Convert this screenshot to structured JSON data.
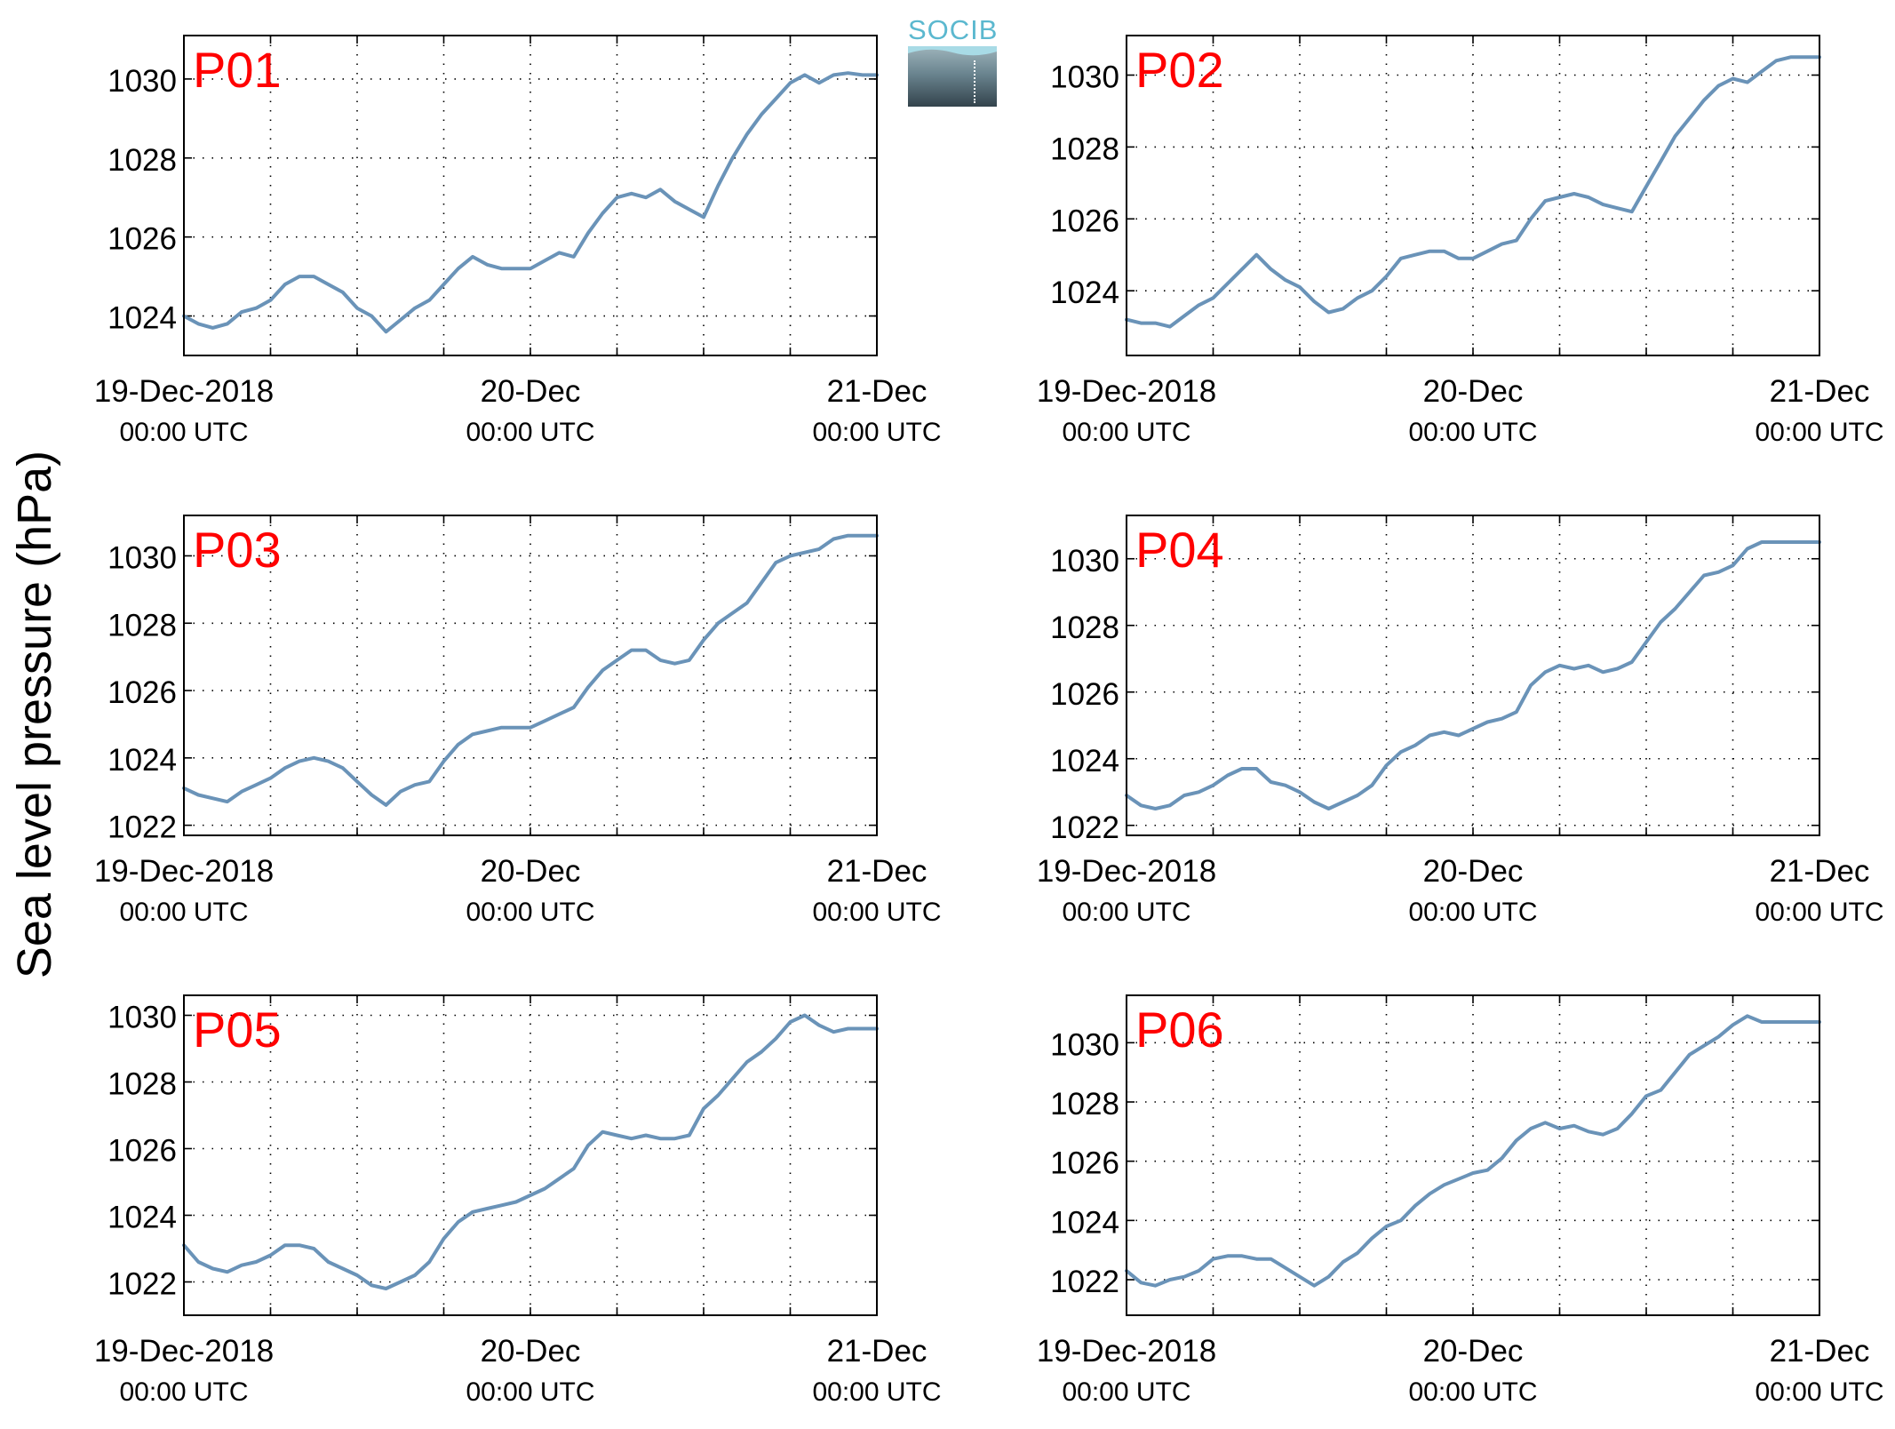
{
  "figure": {
    "ylabel": "Sea level pressure (hPa)",
    "logo_text": "SOCIB",
    "colors": {
      "line": "#6a93b8",
      "panel_label": "#ff0000",
      "axis": "#000000",
      "grid": "#000000"
    }
  },
  "chart_data": [
    {
      "type": "line",
      "title": "P01",
      "x_tick_labels": [
        [
          "19-Dec-2018",
          "00:00 UTC"
        ],
        [
          "20-Dec",
          "00:00 UTC"
        ],
        [
          "21-Dec",
          "00:00 UTC"
        ]
      ],
      "y_ticks": [
        1024,
        1026,
        1028,
        1030
      ],
      "ylim": [
        1023,
        1031.1
      ],
      "xlim": [
        0,
        48
      ],
      "grid": true,
      "series": [
        {
          "x": [
            0,
            1,
            2,
            3,
            4,
            5,
            6,
            7,
            8,
            9,
            10,
            11,
            12,
            13,
            14,
            15,
            16,
            17,
            18,
            19,
            20,
            21,
            22,
            23,
            24,
            25,
            26,
            27,
            28,
            29,
            30,
            31,
            32,
            33,
            34,
            35,
            36,
            37,
            38,
            39,
            40,
            41,
            42,
            43,
            44,
            45,
            46,
            47,
            48
          ],
          "y": [
            1024.0,
            1023.8,
            1023.7,
            1023.8,
            1024.1,
            1024.2,
            1024.4,
            1024.8,
            1025.0,
            1025.0,
            1024.8,
            1024.6,
            1024.2,
            1024.0,
            1023.6,
            1023.9,
            1024.2,
            1024.4,
            1024.8,
            1025.2,
            1025.5,
            1025.3,
            1025.2,
            1025.2,
            1025.2,
            1025.4,
            1025.6,
            1025.5,
            1026.1,
            1026.6,
            1027.0,
            1027.1,
            1027.0,
            1027.2,
            1026.9,
            1026.7,
            1026.5,
            1027.3,
            1028.0,
            1028.6,
            1029.1,
            1029.5,
            1029.9,
            1030.1,
            1029.9,
            1030.1,
            1030.15,
            1030.1,
            1030.1
          ]
        }
      ]
    },
    {
      "type": "line",
      "title": "P02",
      "x_tick_labels": [
        [
          "19-Dec-2018",
          "00:00 UTC"
        ],
        [
          "20-Dec",
          "00:00 UTC"
        ],
        [
          "21-Dec",
          "00:00 UTC"
        ]
      ],
      "y_ticks": [
        1024,
        1026,
        1028,
        1030
      ],
      "ylim": [
        1022.2,
        1031.1
      ],
      "xlim": [
        0,
        48
      ],
      "grid": true,
      "series": [
        {
          "x": [
            0,
            1,
            2,
            3,
            4,
            5,
            6,
            7,
            8,
            9,
            10,
            11,
            12,
            13,
            14,
            15,
            16,
            17,
            18,
            19,
            20,
            21,
            22,
            23,
            24,
            25,
            26,
            27,
            28,
            29,
            30,
            31,
            32,
            33,
            34,
            35,
            36,
            37,
            38,
            39,
            40,
            41,
            42,
            43,
            44,
            45,
            46,
            47,
            48
          ],
          "y": [
            1023.2,
            1023.1,
            1023.1,
            1023.0,
            1023.3,
            1023.6,
            1023.8,
            1024.2,
            1024.6,
            1025.0,
            1024.6,
            1024.3,
            1024.1,
            1023.7,
            1023.4,
            1023.5,
            1023.8,
            1024.0,
            1024.4,
            1024.9,
            1025.0,
            1025.1,
            1025.1,
            1024.9,
            1024.9,
            1025.1,
            1025.3,
            1025.4,
            1026.0,
            1026.5,
            1026.6,
            1026.7,
            1026.6,
            1026.4,
            1026.3,
            1026.2,
            1026.9,
            1027.6,
            1028.3,
            1028.8,
            1029.3,
            1029.7,
            1029.9,
            1029.8,
            1030.1,
            1030.4,
            1030.5,
            1030.5,
            1030.5
          ]
        }
      ]
    },
    {
      "type": "line",
      "title": "P03",
      "x_tick_labels": [
        [
          "19-Dec-2018",
          "00:00 UTC"
        ],
        [
          "20-Dec",
          "00:00 UTC"
        ],
        [
          "21-Dec",
          "00:00 UTC"
        ]
      ],
      "y_ticks": [
        1022,
        1024,
        1026,
        1028,
        1030
      ],
      "ylim": [
        1021.7,
        1031.2
      ],
      "xlim": [
        0,
        48
      ],
      "grid": true,
      "series": [
        {
          "x": [
            0,
            1,
            2,
            3,
            4,
            5,
            6,
            7,
            8,
            9,
            10,
            11,
            12,
            13,
            14,
            15,
            16,
            17,
            18,
            19,
            20,
            21,
            22,
            23,
            24,
            25,
            26,
            27,
            28,
            29,
            30,
            31,
            32,
            33,
            34,
            35,
            36,
            37,
            38,
            39,
            40,
            41,
            42,
            43,
            44,
            45,
            46,
            47,
            48
          ],
          "y": [
            1023.1,
            1022.9,
            1022.8,
            1022.7,
            1023.0,
            1023.2,
            1023.4,
            1023.7,
            1023.9,
            1024.0,
            1023.9,
            1023.7,
            1023.3,
            1022.9,
            1022.6,
            1023.0,
            1023.2,
            1023.3,
            1023.9,
            1024.4,
            1024.7,
            1024.8,
            1024.9,
            1024.9,
            1024.9,
            1025.1,
            1025.3,
            1025.5,
            1026.1,
            1026.6,
            1026.9,
            1027.2,
            1027.2,
            1026.9,
            1026.8,
            1026.9,
            1027.5,
            1028.0,
            1028.3,
            1028.6,
            1029.2,
            1029.8,
            1030.0,
            1030.1,
            1030.2,
            1030.5,
            1030.6,
            1030.6,
            1030.6
          ]
        }
      ]
    },
    {
      "type": "line",
      "title": "P04",
      "x_tick_labels": [
        [
          "19-Dec-2018",
          "00:00 UTC"
        ],
        [
          "20-Dec",
          "00:00 UTC"
        ],
        [
          "21-Dec",
          "00:00 UTC"
        ]
      ],
      "y_ticks": [
        1022,
        1024,
        1026,
        1028,
        1030
      ],
      "ylim": [
        1021.7,
        1031.3
      ],
      "xlim": [
        0,
        48
      ],
      "grid": true,
      "series": [
        {
          "x": [
            0,
            1,
            2,
            3,
            4,
            5,
            6,
            7,
            8,
            9,
            10,
            11,
            12,
            13,
            14,
            15,
            16,
            17,
            18,
            19,
            20,
            21,
            22,
            23,
            24,
            25,
            26,
            27,
            28,
            29,
            30,
            31,
            32,
            33,
            34,
            35,
            36,
            37,
            38,
            39,
            40,
            41,
            42,
            43,
            44,
            45,
            46,
            47,
            48
          ],
          "y": [
            1022.9,
            1022.6,
            1022.5,
            1022.6,
            1022.9,
            1023.0,
            1023.2,
            1023.5,
            1023.7,
            1023.7,
            1023.3,
            1023.2,
            1023.0,
            1022.7,
            1022.5,
            1022.7,
            1022.9,
            1023.2,
            1023.8,
            1024.2,
            1024.4,
            1024.7,
            1024.8,
            1024.7,
            1024.9,
            1025.1,
            1025.2,
            1025.4,
            1026.2,
            1026.6,
            1026.8,
            1026.7,
            1026.8,
            1026.6,
            1026.7,
            1026.9,
            1027.5,
            1028.1,
            1028.5,
            1029.0,
            1029.5,
            1029.6,
            1029.8,
            1030.3,
            1030.5,
            1030.5,
            1030.5,
            1030.5,
            1030.5
          ]
        }
      ]
    },
    {
      "type": "line",
      "title": "P05",
      "x_tick_labels": [
        [
          "19-Dec-2018",
          "00:00 UTC"
        ],
        [
          "20-Dec",
          "00:00 UTC"
        ],
        [
          "21-Dec",
          "00:00 UTC"
        ]
      ],
      "y_ticks": [
        1022,
        1024,
        1026,
        1028,
        1030
      ],
      "ylim": [
        1021.0,
        1030.6
      ],
      "xlim": [
        0,
        48
      ],
      "grid": true,
      "series": [
        {
          "x": [
            0,
            1,
            2,
            3,
            4,
            5,
            6,
            7,
            8,
            9,
            10,
            11,
            12,
            13,
            14,
            15,
            16,
            17,
            18,
            19,
            20,
            21,
            22,
            23,
            24,
            25,
            26,
            27,
            28,
            29,
            30,
            31,
            32,
            33,
            34,
            35,
            36,
            37,
            38,
            39,
            40,
            41,
            42,
            43,
            44,
            45,
            46,
            47,
            48
          ],
          "y": [
            1023.1,
            1022.6,
            1022.4,
            1022.3,
            1022.5,
            1022.6,
            1022.8,
            1023.1,
            1023.1,
            1023.0,
            1022.6,
            1022.4,
            1022.2,
            1021.9,
            1021.8,
            1022.0,
            1022.2,
            1022.6,
            1023.3,
            1023.8,
            1024.1,
            1024.2,
            1024.3,
            1024.4,
            1024.6,
            1024.8,
            1025.1,
            1025.4,
            1026.1,
            1026.5,
            1026.4,
            1026.3,
            1026.4,
            1026.3,
            1026.3,
            1026.4,
            1027.2,
            1027.6,
            1028.1,
            1028.6,
            1028.9,
            1029.3,
            1029.8,
            1030.0,
            1029.7,
            1029.5,
            1029.6,
            1029.6,
            1029.6
          ]
        }
      ]
    },
    {
      "type": "line",
      "title": "P06",
      "x_tick_labels": [
        [
          "19-Dec-2018",
          "00:00 UTC"
        ],
        [
          "20-Dec",
          "00:00 UTC"
        ],
        [
          "21-Dec",
          "00:00 UTC"
        ]
      ],
      "y_ticks": [
        1022,
        1024,
        1026,
        1028,
        1030
      ],
      "ylim": [
        1020.8,
        1031.6
      ],
      "xlim": [
        0,
        48
      ],
      "grid": true,
      "series": [
        {
          "x": [
            0,
            1,
            2,
            3,
            4,
            5,
            6,
            7,
            8,
            9,
            10,
            11,
            12,
            13,
            14,
            15,
            16,
            17,
            18,
            19,
            20,
            21,
            22,
            23,
            24,
            25,
            26,
            27,
            28,
            29,
            30,
            31,
            32,
            33,
            34,
            35,
            36,
            37,
            38,
            39,
            40,
            41,
            42,
            43,
            44,
            45,
            46,
            47,
            48
          ],
          "y": [
            1022.3,
            1021.9,
            1021.8,
            1022.0,
            1022.1,
            1022.3,
            1022.7,
            1022.8,
            1022.8,
            1022.7,
            1022.7,
            1022.4,
            1022.1,
            1021.8,
            1022.1,
            1022.6,
            1022.9,
            1023.4,
            1023.8,
            1024.0,
            1024.5,
            1024.9,
            1025.2,
            1025.4,
            1025.6,
            1025.7,
            1026.1,
            1026.7,
            1027.1,
            1027.3,
            1027.1,
            1027.2,
            1027.0,
            1026.9,
            1027.1,
            1027.6,
            1028.2,
            1028.4,
            1029.0,
            1029.6,
            1029.9,
            1030.2,
            1030.6,
            1030.9,
            1030.7,
            1030.7,
            1030.7,
            1030.7,
            1030.7
          ]
        }
      ]
    }
  ]
}
